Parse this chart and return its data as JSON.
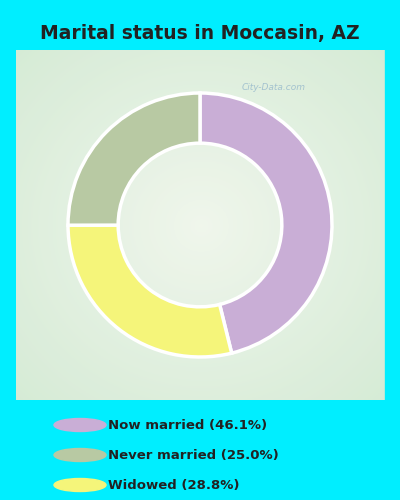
{
  "title": "Marital status in Moccasin, AZ",
  "slices": [
    46.1,
    28.8,
    25.0
  ],
  "colors": [
    "#c9aed6",
    "#f5f57a",
    "#b8c9a3"
  ],
  "legend_labels": [
    "Now married (46.1%)",
    "Never married (25.0%)",
    "Widowed (28.8%)"
  ],
  "legend_colors": [
    "#c9aed6",
    "#b8c9a3",
    "#f5f57a"
  ],
  "background_color": "#00eeff",
  "chart_box_color": "#e6f2e6",
  "title_color": "#222222",
  "title_fontsize": 13.5,
  "donut_width": 0.38,
  "start_angle": 90,
  "watermark": "City-Data.com",
  "watermark_color": "#99bbcc"
}
